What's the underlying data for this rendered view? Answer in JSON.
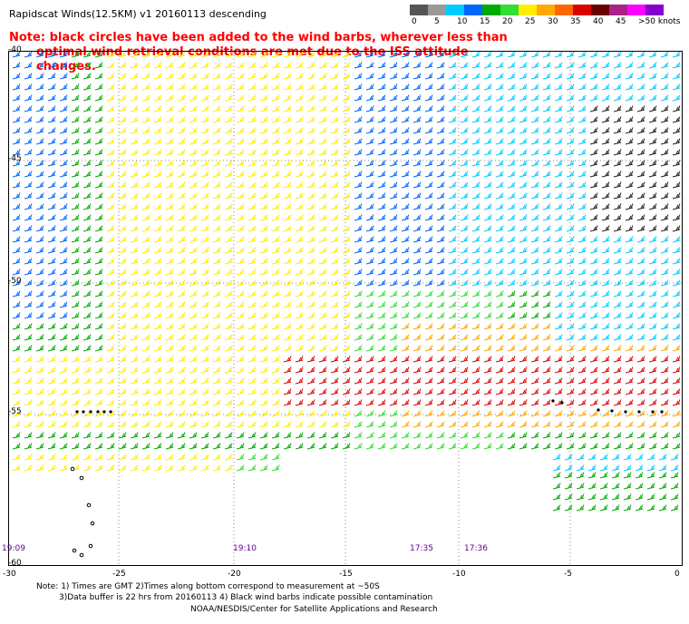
{
  "title": "Rapidscat Winds(12.5KM) v1 20160113 descending",
  "note": {
    "line1": "Note: black circles have been added to the wind barbs, wherever less than",
    "line2": "optimal wind retrieval conditions are met due to the ISS attitude changes."
  },
  "legend": {
    "colors": [
      "#555555",
      "#999999",
      "#00ccff",
      "#0066ff",
      "#00aa00",
      "#33dd33",
      "#ffee00",
      "#ffaa00",
      "#ff6600",
      "#dd0000",
      "#660000",
      "#aa2288",
      "#ff00ff",
      "#8800cc"
    ],
    "labels": [
      "0",
      "5",
      "10",
      "15",
      "20",
      "25",
      "30",
      "35",
      "40",
      "45",
      ">50 knots"
    ]
  },
  "map": {
    "lon_ticks": [
      "-30",
      "-25",
      "-20",
      "-15",
      "-10",
      "-5",
      "0"
    ],
    "lat_ticks": [
      "-40",
      "-45",
      "-50",
      "-55",
      "-60"
    ],
    "times": [
      "19:09",
      "19:10",
      "17:35",
      "17:36"
    ]
  },
  "footer": {
    "line1": "Note: 1) Times are GMT 2)Times along bottom correspond to measurement at ~50S",
    "line2": "3)Data buffer is 22 hrs from 20160113 4) Black wind barbs indicate possible contamination",
    "line3": "NOAA/NESDIS/Center for Satellite Applications and Research"
  }
}
